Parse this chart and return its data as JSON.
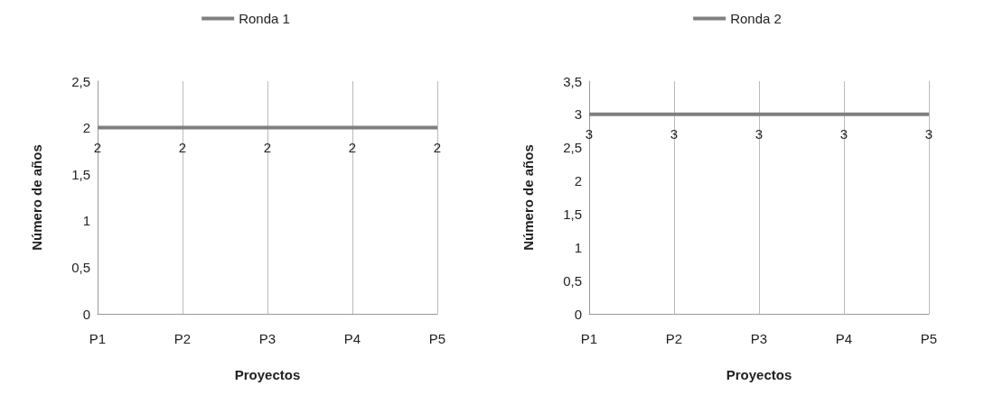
{
  "chart_data": [
    {
      "type": "line",
      "xlabel": "Proyectos",
      "ylabel": "Número de años",
      "categories": [
        "P1",
        "P2",
        "P3",
        "P4",
        "P5"
      ],
      "series": [
        {
          "name": "Ronda 1",
          "color": "#7f7f7f",
          "values": [
            2,
            2,
            2,
            2,
            2
          ]
        }
      ],
      "ylim": [
        0,
        2.5
      ],
      "yticks": [
        0,
        {
          "value": 0.5,
          "label": "0,5"
        },
        1,
        {
          "value": 1.5,
          "label": "1,5"
        },
        2,
        {
          "value": 2.5,
          "label": "2,5"
        }
      ],
      "grid": "x",
      "legend": "top",
      "marker": "none",
      "data_labels": true
    },
    {
      "type": "line",
      "xlabel": "Proyectos",
      "ylabel": "Número de años",
      "categories": [
        "P1",
        "P2",
        "P3",
        "P4",
        "P5"
      ],
      "series": [
        {
          "name": "Ronda 2",
          "color": "#7f7f7f",
          "values": [
            3,
            3,
            3,
            3,
            3
          ]
        }
      ],
      "ylim": [
        0,
        3.5
      ],
      "yticks": [
        0,
        {
          "value": 0.5,
          "label": "0,5"
        },
        1,
        {
          "value": 1.5,
          "label": "1,5"
        },
        2,
        {
          "value": 2.5,
          "label": "2,5"
        },
        3,
        {
          "value": 3.5,
          "label": "3,5"
        }
      ],
      "grid": "x",
      "legend": "top",
      "marker": "none",
      "data_labels": true
    }
  ]
}
